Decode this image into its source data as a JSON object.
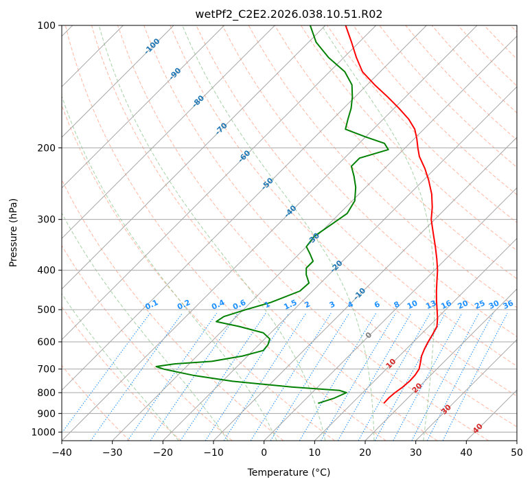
{
  "chart_data": {
    "type": "line",
    "title": "wetPf2_C2E2.2026.038.10.51.R02",
    "xlabel": "Temperature (°C)",
    "ylabel": "Pressure (hPa)",
    "xlim": [
      -40,
      50
    ],
    "ylim": [
      1050,
      100
    ],
    "skew": 45,
    "x_ticks": [
      -40,
      -30,
      -20,
      -10,
      0,
      10,
      20,
      30,
      40,
      50
    ],
    "y_ticks": [
      1000,
      900,
      800,
      700,
      600,
      500,
      400,
      300,
      200,
      100
    ],
    "colors": {
      "temperature": "#ff0000",
      "dewpoint": "#008000",
      "isotherm": "#a6a6a6",
      "isobar": "#a6a6a6",
      "dry_adiabat": "#ff9e80",
      "moist_adiabat": "#7fbf7f",
      "mixing_ratio": "#1e90ff",
      "label_blue": "#1f77b4",
      "label_red": "#d62728",
      "label_gray": "#7f7f7f"
    },
    "series": [
      {
        "name": "Temperature",
        "points": [
          [
            850,
            16.3
          ],
          [
            825,
            16.2
          ],
          [
            800,
            16.4
          ],
          [
            775,
            16.8
          ],
          [
            750,
            17.0
          ],
          [
            725,
            16.9
          ],
          [
            700,
            16.5
          ],
          [
            675,
            15.5
          ],
          [
            650,
            14.4
          ],
          [
            625,
            13.6
          ],
          [
            600,
            12.9
          ],
          [
            575,
            12.3
          ],
          [
            550,
            11.6
          ],
          [
            525,
            10.1
          ],
          [
            500,
            8.3
          ],
          [
            475,
            6.4
          ],
          [
            450,
            4.5
          ],
          [
            425,
            2.6
          ],
          [
            400,
            0.6
          ],
          [
            375,
            -1.8
          ],
          [
            350,
            -4.5
          ],
          [
            325,
            -7.5
          ],
          [
            300,
            -10.7
          ],
          [
            280,
            -12.9
          ],
          [
            260,
            -15.6
          ],
          [
            240,
            -19.0
          ],
          [
            225,
            -22.0
          ],
          [
            210,
            -25.5
          ],
          [
            200,
            -27.5
          ],
          [
            190,
            -29.5
          ],
          [
            180,
            -31.8
          ],
          [
            170,
            -35.0
          ],
          [
            160,
            -39.0
          ],
          [
            150,
            -43.5
          ],
          [
            140,
            -48.5
          ],
          [
            130,
            -53.5
          ],
          [
            120,
            -57.5
          ],
          [
            110,
            -61.5
          ],
          [
            100,
            -66.0
          ]
        ]
      },
      {
        "name": "Dewpoint",
        "points": [
          [
            850,
            3.3
          ],
          [
            825,
            5.5
          ],
          [
            800,
            6.8
          ],
          [
            790,
            5.0
          ],
          [
            775,
            -5.0
          ],
          [
            750,
            -18.0
          ],
          [
            725,
            -27.0
          ],
          [
            700,
            -34.0
          ],
          [
            690,
            -36.0
          ],
          [
            680,
            -33.0
          ],
          [
            670,
            -26.0
          ],
          [
            650,
            -21.0
          ],
          [
            630,
            -18.0
          ],
          [
            610,
            -18.2
          ],
          [
            590,
            -19.0
          ],
          [
            570,
            -21.5
          ],
          [
            550,
            -27.5
          ],
          [
            535,
            -33.0
          ],
          [
            520,
            -32.5
          ],
          [
            500,
            -29.5
          ],
          [
            480,
            -26.0
          ],
          [
            450,
            -22.5
          ],
          [
            430,
            -22.3
          ],
          [
            410,
            -24.5
          ],
          [
            395,
            -25.8
          ],
          [
            380,
            -25.8
          ],
          [
            365,
            -27.8
          ],
          [
            350,
            -30.0
          ],
          [
            330,
            -30.5
          ],
          [
            310,
            -29.5
          ],
          [
            290,
            -28.5
          ],
          [
            270,
            -29.5
          ],
          [
            250,
            -32.0
          ],
          [
            235,
            -34.5
          ],
          [
            222,
            -37.0
          ],
          [
            212,
            -37.0
          ],
          [
            202,
            -33.0
          ],
          [
            195,
            -35.0
          ],
          [
            188,
            -40.0
          ],
          [
            180,
            -45.5
          ],
          [
            170,
            -47.0
          ],
          [
            160,
            -48.5
          ],
          [
            150,
            -50.5
          ],
          [
            140,
            -53.0
          ],
          [
            130,
            -57.0
          ],
          [
            120,
            -63.0
          ],
          [
            110,
            -68.5
          ],
          [
            100,
            -73.0
          ]
        ]
      }
    ],
    "dry_adiabat_temps_c": [
      -30,
      -20,
      -10,
      0,
      10,
      20,
      30,
      40,
      50,
      60,
      70,
      80,
      90,
      100,
      110,
      120,
      130,
      140,
      150,
      160,
      170,
      180,
      190,
      200,
      210,
      220,
      230,
      240,
      250
    ],
    "moist_adiabat_temps_c": [
      -20,
      -10,
      0,
      10,
      20,
      30
    ],
    "mixing_ratio_g_per_kg": [
      0.1,
      0.2,
      0.4,
      0.6,
      1,
      1.5,
      2,
      3,
      4,
      6,
      8,
      10,
      13,
      16,
      20,
      25,
      30,
      36
    ],
    "mixing_ratio_labels": [
      "0.1",
      "0.2",
      "0.4",
      "0.6",
      "1",
      "1.5",
      "2",
      "3",
      "4",
      "6",
      "8",
      "10",
      "13",
      "16",
      "20",
      "25",
      "30",
      "36"
    ],
    "isotherm_labels": [
      {
        "text": "-100",
        "temp": -100
      },
      {
        "text": "-90",
        "temp": -90
      },
      {
        "text": "-80",
        "temp": -80
      },
      {
        "text": "-70",
        "temp": -70
      },
      {
        "text": "-60",
        "temp": -60
      },
      {
        "text": "-50",
        "temp": -50
      },
      {
        "text": "-40",
        "temp": -40
      },
      {
        "text": "-30",
        "temp": -30
      },
      {
        "text": "-20",
        "temp": -20
      },
      {
        "text": "-10",
        "temp": -10
      },
      {
        "text": "0",
        "temp": 0
      },
      {
        "text": "10",
        "temp": 10
      },
      {
        "text": "20",
        "temp": 20
      },
      {
        "text": "30",
        "temp": 30
      },
      {
        "text": "40",
        "temp": 40
      }
    ]
  }
}
